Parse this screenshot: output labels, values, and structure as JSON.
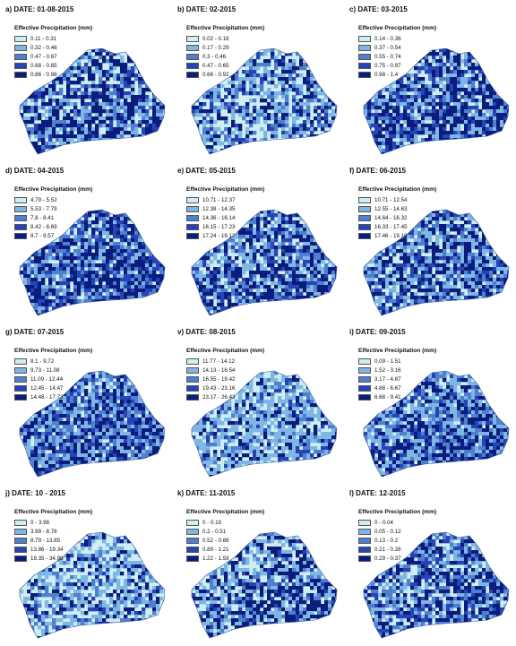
{
  "colors": [
    "#cdeef2",
    "#7fb6e3",
    "#4f7fcf",
    "#2644b5",
    "#0b1d7c"
  ],
  "legend_title": "Effective Precipitation (mm)",
  "panels": [
    {
      "title": "a) DATE: 01-08-2015",
      "classes": [
        "0.11 - 0.31",
        "0.32 - 0.46",
        "0.47 - 0.67",
        "0.68 - 0.85",
        "0.86 - 0.98"
      ],
      "weights": [
        0.35,
        0.2,
        0.15,
        0.1,
        0.2
      ]
    },
    {
      "title": "b) DATE: 02-2015",
      "classes": [
        "0.02 - 0.16",
        "0.17 - 0.29",
        "0.3 - 0.46",
        "0.47 - 0.65",
        "0.66 - 0.92"
      ],
      "weights": [
        0.45,
        0.2,
        0.15,
        0.1,
        0.1
      ]
    },
    {
      "title": "c) DATE: 03-2015",
      "classes": [
        "0.14 - 0.36",
        "0.37 - 0.54",
        "0.55 - 0.74",
        "0.75 - 0.97",
        "0.98 - 1.4"
      ],
      "weights": [
        0.3,
        0.2,
        0.15,
        0.15,
        0.2
      ]
    },
    {
      "title": "d) DATE: 04-2015",
      "classes": [
        "4.79 - 5.52",
        "5.53 - 7.79",
        "7.8 - 8.41",
        "8.42 - 8.69",
        "8.7 - 9.57"
      ],
      "weights": [
        0.2,
        0.15,
        0.2,
        0.2,
        0.25
      ]
    },
    {
      "title": "e) DATE: 05-2015",
      "classes": [
        "10.71 - 12.37",
        "12.38 - 14.35",
        "14.36 - 16.14",
        "16.15 - 17.23",
        "17.24 - 19.12"
      ],
      "weights": [
        0.3,
        0.25,
        0.15,
        0.15,
        0.15
      ]
    },
    {
      "title": "f) DATE: 06-2015",
      "classes": [
        "10.71 - 12.54",
        "12.55 - 14.63",
        "14.64 - 16.32",
        "16.33 - 17.45",
        "17.46 - 19.18"
      ],
      "weights": [
        0.25,
        0.25,
        0.15,
        0.15,
        0.2
      ]
    },
    {
      "title": "g) DATE: 07-2015",
      "classes": [
        "8.1 - 9.72",
        "9.73 - 11.08",
        "11.09 - 12.44",
        "12.45 - 14.47",
        "14.48 - 17.72"
      ],
      "weights": [
        0.25,
        0.25,
        0.2,
        0.15,
        0.15
      ]
    },
    {
      "title": "v) DATE: 08-2015",
      "classes": [
        "11.77 - 14.12",
        "14.13 - 16.54",
        "16.55 - 19.42",
        "19.43 - 23.16",
        "23.17 - 26.43"
      ],
      "weights": [
        0.35,
        0.4,
        0.1,
        0.1,
        0.05
      ]
    },
    {
      "title": "i) DATE: 09-2015",
      "classes": [
        "0.09 - 1.51",
        "1.52 - 3.16",
        "3.17 - 4.87",
        "4.88 - 6.67",
        "6.68 - 9.41"
      ],
      "weights": [
        0.25,
        0.25,
        0.2,
        0.15,
        0.15
      ]
    },
    {
      "title": "j) DATE: 10 - 2015",
      "classes": [
        "0 - 3.98",
        "3.99 - 8.78",
        "8.79 - 13.85",
        "13.86 - 19.34",
        "19.35 - 34.98"
      ],
      "weights": [
        0.45,
        0.25,
        0.15,
        0.1,
        0.05
      ]
    },
    {
      "title": "k) DATE: 11-2015",
      "classes": [
        "0 - 0.19",
        "0.2 - 0.51",
        "0.52 - 0.88",
        "0.89 - 1.21",
        "1.22 - 1.59"
      ],
      "weights": [
        0.35,
        0.25,
        0.15,
        0.1,
        0.15
      ]
    },
    {
      "title": "l) DATE: 12-2015",
      "classes": [
        "0 - 0.04",
        "0.05 - 0.12",
        "0.13 - 0.2",
        "0.21 - 0.28",
        "0.29 - 0.37"
      ],
      "weights": [
        0.3,
        0.2,
        0.15,
        0.15,
        0.2
      ]
    }
  ]
}
